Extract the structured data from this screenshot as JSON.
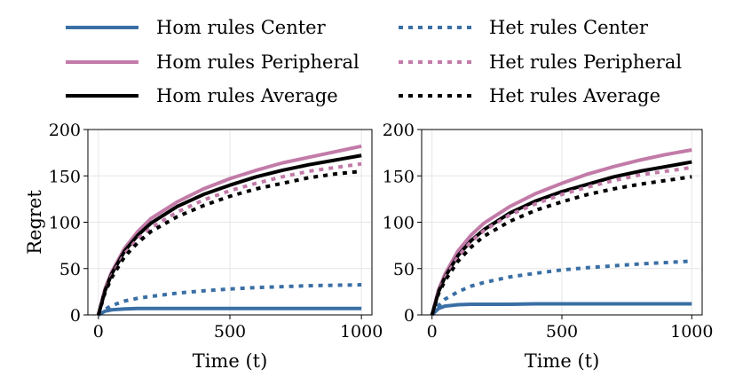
{
  "legend": {
    "entries": [
      {
        "label": "Hom rules Center",
        "color": "#3a6fa5",
        "dash": "solid"
      },
      {
        "label": "Hom rules Peripheral",
        "color": "#c27ba8",
        "dash": "solid"
      },
      {
        "label": "Hom rules Average",
        "color": "#000000",
        "dash": "solid"
      },
      {
        "label": "Het rules Center",
        "color": "#3a6fa5",
        "dash": "dotted"
      },
      {
        "label": "Het rules Peripheral",
        "color": "#c27ba8",
        "dash": "dotted"
      },
      {
        "label": "Het rules Average",
        "color": "#000000",
        "dash": "dotted"
      }
    ]
  },
  "chart_data": [
    {
      "type": "line",
      "xlabel": "Time (t)",
      "ylabel": "Regret",
      "xlim": [
        -40,
        1040
      ],
      "ylim": [
        0,
        200
      ],
      "xticks": [
        0,
        500,
        1000
      ],
      "yticks": [
        0,
        50,
        100,
        150,
        200
      ],
      "grid": true,
      "x": [
        0,
        25,
        50,
        100,
        150,
        200,
        300,
        400,
        500,
        600,
        700,
        800,
        900,
        1000
      ],
      "series": [
        {
          "name": "Hom rules Center",
          "color": "#3a6fa5",
          "dash": "solid",
          "values": [
            0,
            4,
            5.5,
            6.5,
            7,
            7,
            7,
            7,
            7,
            7,
            7,
            7,
            7,
            7
          ]
        },
        {
          "name": "Hom rules Peripheral",
          "color": "#c27ba8",
          "dash": "solid",
          "values": [
            0,
            28,
            46,
            72,
            90,
            104,
            122,
            136,
            147,
            156,
            164,
            170,
            176,
            182
          ]
        },
        {
          "name": "Hom rules Average",
          "color": "#000000",
          "dash": "solid",
          "values": [
            0,
            26,
            44,
            69,
            86,
            99,
            117,
            130,
            140,
            149,
            156,
            162,
            167,
            172
          ]
        },
        {
          "name": "Het rules Center",
          "color": "#3a6fa5",
          "dash": "dotted",
          "values": [
            0,
            6,
            10,
            15,
            18,
            20,
            23.5,
            26,
            28,
            29.5,
            30.5,
            31.5,
            32,
            32.5
          ]
        },
        {
          "name": "Het rules Peripheral",
          "color": "#c27ba8",
          "dash": "dotted",
          "values": [
            0,
            25,
            42,
            66,
            82,
            94,
            111,
            124,
            134,
            142,
            149,
            155,
            159,
            163
          ]
        },
        {
          "name": "Het rules Average",
          "color": "#000000",
          "dash": "dotted",
          "values": [
            0,
            24,
            40,
            63,
            78,
            90,
            106,
            118,
            128,
            136,
            142,
            148,
            152,
            155
          ]
        }
      ]
    },
    {
      "type": "line",
      "xlabel": "Time (t)",
      "ylabel": "",
      "xlim": [
        -40,
        1040
      ],
      "ylim": [
        0,
        200
      ],
      "xticks": [
        0,
        500,
        1000
      ],
      "yticks": [
        0,
        50,
        100,
        150,
        200
      ],
      "grid": true,
      "x": [
        0,
        25,
        50,
        100,
        150,
        200,
        300,
        400,
        500,
        600,
        700,
        800,
        900,
        1000
      ],
      "series": [
        {
          "name": "Hom rules Center",
          "color": "#3a6fa5",
          "dash": "solid",
          "values": [
            0,
            7,
            9.5,
            11,
            11.5,
            11.5,
            11.5,
            12,
            12,
            12,
            12,
            12,
            12,
            12
          ]
        },
        {
          "name": "Hom rules Peripheral",
          "color": "#c27ba8",
          "dash": "solid",
          "values": [
            0,
            27,
            44,
            69,
            86,
            99,
            117,
            131,
            142,
            152,
            160,
            167,
            173,
            178
          ]
        },
        {
          "name": "Hom rules Average",
          "color": "#000000",
          "dash": "solid",
          "values": [
            0,
            25,
            41,
            64,
            80,
            92,
            110,
            123,
            133,
            141,
            149,
            155,
            160,
            165
          ]
        },
        {
          "name": "Het rules Center",
          "color": "#3a6fa5",
          "dash": "dotted",
          "values": [
            0,
            10,
            17,
            25,
            31,
            35,
            41,
            45,
            48.5,
            51,
            53,
            55,
            56.5,
            58
          ]
        },
        {
          "name": "Het rules Peripheral",
          "color": "#c27ba8",
          "dash": "dotted",
          "values": [
            0,
            24,
            40,
            63,
            79,
            91,
            108,
            120,
            130,
            138,
            145,
            151,
            155,
            159
          ]
        },
        {
          "name": "Het rules Average",
          "color": "#000000",
          "dash": "dotted",
          "values": [
            0,
            23,
            37,
            58,
            73,
            85,
            101,
            113,
            122,
            130,
            136,
            141,
            145,
            149
          ]
        }
      ]
    }
  ]
}
